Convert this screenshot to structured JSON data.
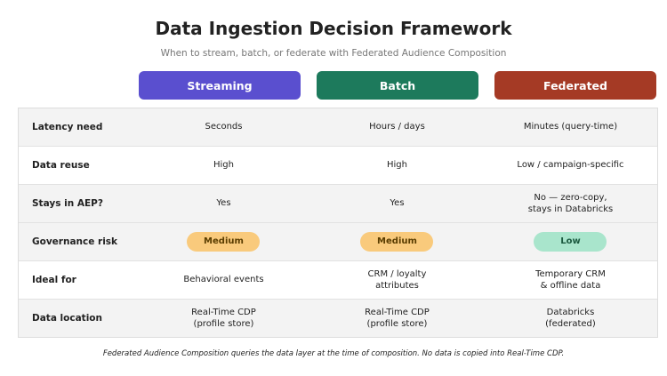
{
  "header": {
    "title": "Data Ingestion Decision Framework",
    "subtitle": "When to stream, batch, or federate with Federated Audience Composition"
  },
  "table": {
    "columns": [
      "Streaming",
      "Batch",
      "Federated"
    ],
    "rows": [
      [
        "Latency need",
        "Seconds",
        "Hours / days",
        "Minutes (query-time)"
      ],
      [
        "Data reuse",
        "High",
        "High",
        "Low / campaign-specific"
      ],
      [
        "Stays in AEP?",
        "Yes",
        "Yes",
        "No — zero-copy,\nstays in Databricks"
      ],
      [
        "Governance risk",
        "Medium",
        "Medium",
        "Low"
      ],
      [
        "Ideal for",
        "Behavioral events",
        "CRM / loyalty\nattributes",
        "Temporary CRM\n& offline data"
      ],
      [
        "Data location",
        "Real-Time CDP\n(profile store)",
        "Real-Time CDP\n(profile store)",
        "Databricks\n(federated)"
      ]
    ]
  },
  "footnote": "Federated Audience Composition queries the data layer at the time of composition. No data is copied into Real-Time CDP."
}
